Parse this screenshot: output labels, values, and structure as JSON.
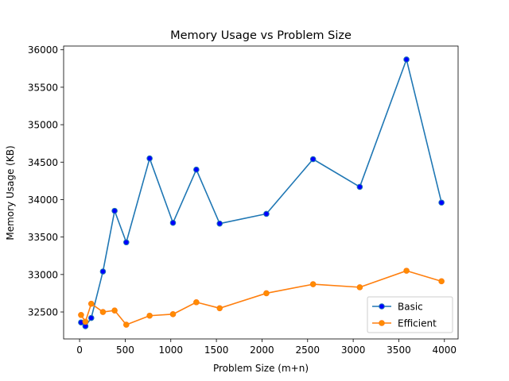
{
  "chart_data": {
    "type": "line",
    "title": "Memory Usage vs Problem Size",
    "xlabel": "Problem Size (m+n)",
    "ylabel": "Memory Usage (KB)",
    "xlim": [
      -175,
      4150
    ],
    "ylim": [
      32140,
      36050
    ],
    "xticks": [
      0,
      500,
      1000,
      1500,
      2000,
      2500,
      3000,
      3500,
      4000
    ],
    "yticks": [
      32500,
      33000,
      33500,
      34000,
      34500,
      35000,
      35500,
      36000
    ],
    "grid": false,
    "legend_position": "lower-right",
    "x": [
      16,
      64,
      128,
      256,
      384,
      512,
      768,
      1024,
      1280,
      1536,
      2048,
      2560,
      3072,
      3584,
      3968
    ],
    "series": [
      {
        "name": "Basic",
        "color": "#1f77b4",
        "marker_face": "#0000ff",
        "values": [
          32360,
          32310,
          32420,
          33040,
          33850,
          33430,
          34550,
          33690,
          34400,
          33680,
          33810,
          34540,
          34170,
          35870,
          33960
        ]
      },
      {
        "name": "Efficient",
        "color": "#ff7f0e",
        "marker_face": "#ff8c00",
        "values": [
          32460,
          32370,
          32610,
          32500,
          32520,
          32330,
          32450,
          32470,
          32630,
          32550,
          32750,
          32870,
          32830,
          33050,
          32910
        ]
      }
    ]
  }
}
